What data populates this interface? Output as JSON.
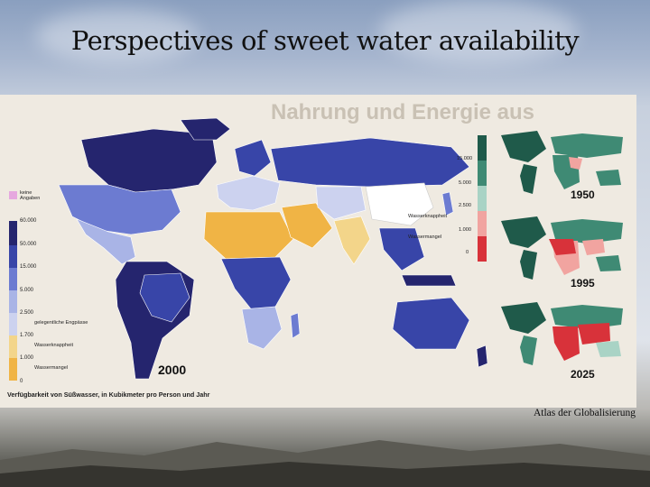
{
  "slide": {
    "title": "Perspectives of sweet water availability",
    "credit": "Atlas der Globalisierung"
  },
  "map": {
    "year_main": "2000",
    "axis_caption": "Verfügbarkeit von Süßwasser, in Kubikmeter pro Person und Jahr",
    "legend": {
      "no_data": "keine Angaben",
      "ticks": [
        "60.000",
        "50.000",
        "15.000",
        "5.000",
        "2.500",
        "1.700",
        "1.000",
        "0"
      ],
      "notes": {
        "occasional": "gelegentliche Engpässe",
        "scarcity": "Wasserknappheit",
        "shortage": "Wassermangel"
      }
    },
    "background_text": "Nahrung und Energie aus",
    "colors": {
      "very_high": "#25256e",
      "high": "#3845a8",
      "medium": "#6c7bd1",
      "lowmed": "#a9b4e6",
      "light": "#ccd2ef",
      "scarcity": "#f3d58a",
      "shortage": "#f0b445",
      "no_data": "#e6a8df"
    }
  },
  "mini_maps": {
    "scale_ticks": [
      "15.000",
      "5.000",
      "2.500",
      "1.000",
      "0"
    ],
    "notes": {
      "scarcity": "Wasserknappheit",
      "shortage": "Wassermangel"
    },
    "years": [
      "1950",
      "1995",
      "2025"
    ],
    "colors": {
      "very_high": "#1f5a4a",
      "high": "#3f8a74",
      "mid": "#a9d3c5",
      "light_red": "#f1a4a0",
      "red": "#d8323a"
    }
  }
}
